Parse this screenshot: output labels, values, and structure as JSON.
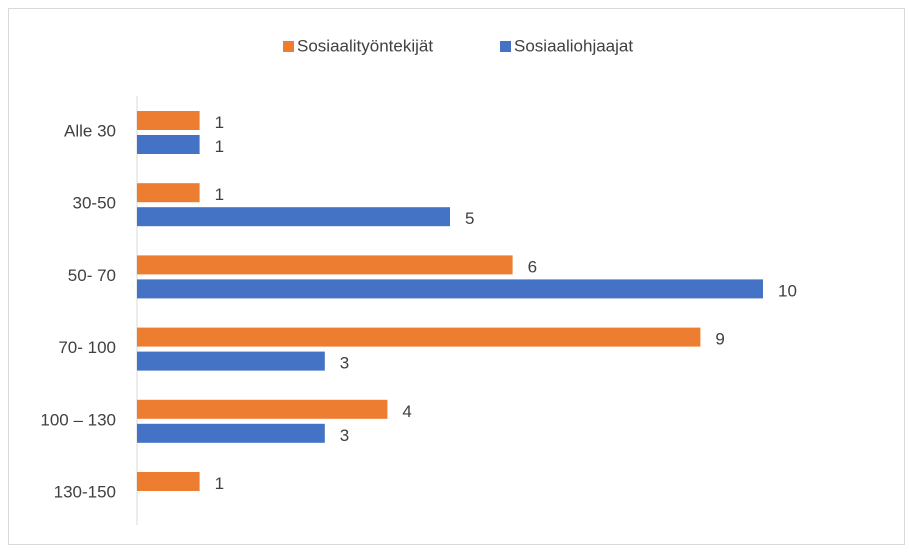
{
  "chart_data": {
    "type": "bar",
    "orientation": "horizontal",
    "categories": [
      "Alle 30",
      "30-50",
      "50- 70",
      "70- 100",
      "100 – 130",
      "130-150"
    ],
    "series": [
      {
        "name": "Sosiaalityöntekijät",
        "color": "#ed7d31",
        "values": [
          1,
          1,
          6,
          9,
          4,
          1
        ]
      },
      {
        "name": "Sosiaaliohjaajat",
        "color": "#4472c4",
        "values": [
          1,
          5,
          10,
          3,
          3,
          null
        ]
      }
    ],
    "legend": "top",
    "grid": false
  }
}
